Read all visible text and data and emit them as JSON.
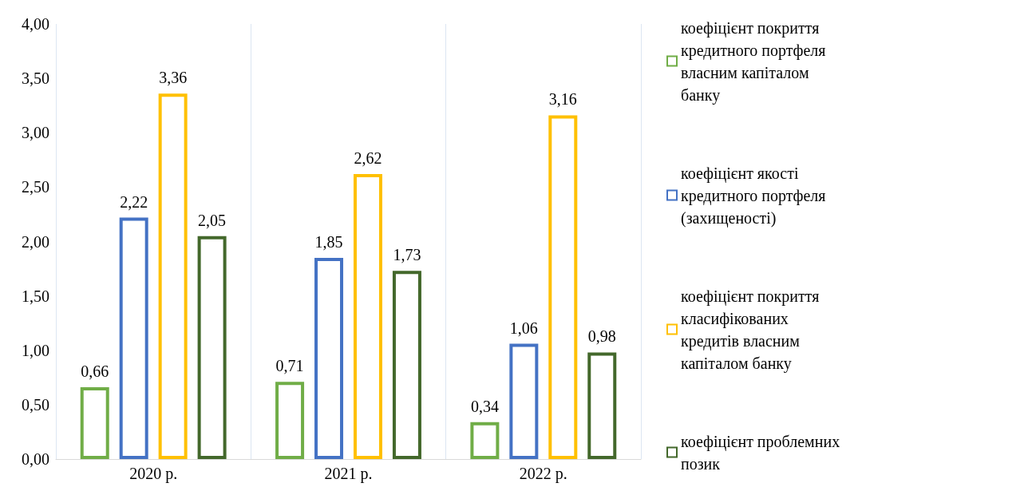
{
  "chart_data": {
    "type": "bar",
    "categories": [
      "2020 р.",
      "2021 р.",
      "2022 р."
    ],
    "series": [
      {
        "name": "коефіцієнт покриття кредитного портфеля власним капіталом банку",
        "color": "#70ad47",
        "values": [
          0.66,
          0.71,
          0.34
        ],
        "value_labels": [
          "0,66",
          "0,71",
          "0,34"
        ]
      },
      {
        "name": "коефіцієнт якості кредитного портфеля (захищеності)",
        "color": "#4472c4",
        "values": [
          2.22,
          1.85,
          1.06
        ],
        "value_labels": [
          "2,22",
          "1,85",
          "1,06"
        ]
      },
      {
        "name": "коефіцієнт покриття класифікованих кредитів власним капіталом банку",
        "color": "#ffc000",
        "values": [
          3.36,
          2.62,
          3.16
        ],
        "value_labels": [
          "3,36",
          "2,62",
          "3,16"
        ]
      },
      {
        "name": "коефіцієнт проблемних позик",
        "color": "#43682b",
        "values": [
          2.05,
          1.73,
          0.98
        ],
        "value_labels": [
          "2,05",
          "1,73",
          "0,98"
        ]
      }
    ],
    "ylim": [
      0,
      4
    ],
    "yticks": [
      {
        "value": 0,
        "label": "0,00"
      },
      {
        "value": 0.5,
        "label": "0,50"
      },
      {
        "value": 1,
        "label": "1,00"
      },
      {
        "value": 1.5,
        "label": "1,50"
      },
      {
        "value": 2,
        "label": "2,00"
      },
      {
        "value": 2.5,
        "label": "2,50"
      },
      {
        "value": 3,
        "label": "3,00"
      },
      {
        "value": 3.5,
        "label": "3,50"
      },
      {
        "value": 4,
        "label": "4,00"
      }
    ],
    "grid": "x",
    "legend": "right"
  }
}
